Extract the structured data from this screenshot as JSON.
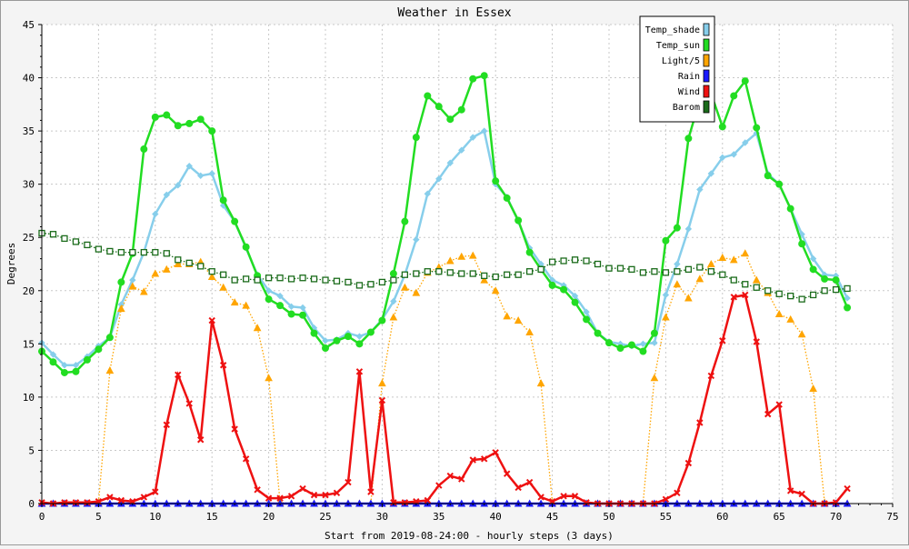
{
  "chart_data": {
    "type": "line",
    "title": "Weather in Essex",
    "xlabel": "Start from 2019-08-24:00 - hourly steps (3 days)",
    "ylabel": "Degrees",
    "xlim": [
      0,
      75
    ],
    "ylim": [
      0,
      45
    ],
    "xticks": [
      0,
      5,
      10,
      15,
      20,
      25,
      30,
      35,
      40,
      45,
      50,
      55,
      60,
      65,
      70,
      75
    ],
    "yticks": [
      0,
      5,
      10,
      15,
      20,
      25,
      30,
      35,
      40,
      45
    ],
    "grid": true,
    "legend_position": "top-right",
    "x": [
      0,
      1,
      2,
      3,
      4,
      5,
      6,
      7,
      8,
      9,
      10,
      11,
      12,
      13,
      14,
      15,
      16,
      17,
      18,
      19,
      20,
      21,
      22,
      23,
      24,
      25,
      26,
      27,
      28,
      29,
      30,
      31,
      32,
      33,
      34,
      35,
      36,
      37,
      38,
      39,
      40,
      41,
      42,
      43,
      44,
      45,
      46,
      47,
      48,
      49,
      50,
      51,
      52,
      53,
      54,
      55,
      56,
      57,
      58,
      59,
      60,
      61,
      62,
      63,
      64,
      65,
      66,
      67,
      68,
      69,
      70,
      71
    ],
    "series": [
      {
        "name": "Temp_shade",
        "color": "#87ceeb",
        "marker": "diamond",
        "style": "solid",
        "values": [
          15.1,
          14.0,
          13.0,
          13.0,
          13.8,
          14.8,
          15.6,
          18.7,
          21.0,
          23.6,
          27.2,
          29.0,
          29.9,
          31.7,
          30.8,
          31.0,
          28.0,
          26.5,
          24.0,
          21.5,
          20.0,
          19.5,
          18.5,
          18.4,
          16.5,
          15.3,
          15.4,
          16.0,
          15.7,
          16.1,
          17.3,
          19.0,
          21.5,
          24.8,
          29.1,
          30.5,
          32.0,
          33.2,
          34.4,
          35.0,
          30.0,
          28.8,
          26.5,
          24.0,
          22.5,
          21.0,
          20.5,
          19.5,
          18.0,
          16.0,
          15.2,
          15.0,
          14.8,
          15.0,
          15.1,
          19.6,
          22.5,
          25.8,
          29.5,
          31.0,
          32.5,
          32.8,
          33.9,
          34.8,
          31.0,
          30.0,
          27.7,
          25.3,
          23.0,
          21.5,
          21.4,
          19.3
        ]
      },
      {
        "name": "Temp_sun",
        "color": "#22dd22",
        "marker": "circle",
        "style": "solid",
        "values": [
          14.3,
          13.3,
          12.3,
          12.4,
          13.5,
          14.5,
          15.6,
          20.8,
          23.5,
          33.3,
          36.3,
          36.5,
          35.5,
          35.7,
          36.1,
          35.0,
          28.5,
          26.5,
          24.1,
          21.4,
          19.2,
          18.6,
          17.8,
          17.7,
          16.0,
          14.6,
          15.3,
          15.7,
          15.0,
          16.1,
          17.2,
          21.6,
          26.5,
          34.4,
          38.3,
          37.3,
          36.1,
          37.0,
          39.9,
          40.2,
          30.3,
          28.7,
          26.6,
          23.6,
          22.0,
          20.5,
          20.1,
          18.9,
          17.3,
          16.0,
          15.1,
          14.6,
          14.9,
          14.3,
          16.0,
          24.7,
          25.9,
          34.3,
          37.9,
          38.5,
          35.4,
          38.3,
          39.7,
          35.3,
          30.8,
          30.0,
          27.7,
          24.4,
          22.0,
          21.1,
          21.0,
          18.4
        ]
      },
      {
        "name": "Light/5",
        "color": "#ffa500",
        "marker": "triangle",
        "style": "dotted",
        "values": [
          0,
          0,
          0,
          0,
          0,
          0.1,
          12.5,
          18.3,
          20.4,
          19.9,
          21.6,
          22.0,
          22.5,
          22.5,
          22.7,
          21.3,
          20.3,
          18.9,
          18.6,
          16.5,
          11.8,
          0.1,
          0,
          0,
          0,
          0,
          0,
          0,
          0,
          0,
          11.3,
          17.5,
          20.3,
          19.8,
          21.7,
          22.2,
          22.8,
          23.2,
          23.3,
          21.0,
          20.0,
          17.6,
          17.2,
          16.1,
          11.3,
          0.1,
          0,
          0,
          0,
          0,
          0,
          0,
          0,
          0,
          11.8,
          17.5,
          20.6,
          19.3,
          21.1,
          22.5,
          23.1,
          22.9,
          23.5,
          21.0,
          19.8,
          17.8,
          17.3,
          15.9,
          10.8,
          0.1,
          0,
          0
        ]
      },
      {
        "name": "Rain",
        "color": "#1a1aff",
        "marker": "triangle",
        "style": "solid",
        "values": [
          0,
          0,
          0,
          0,
          0,
          0,
          0,
          0,
          0,
          0,
          0,
          0,
          0,
          0,
          0,
          0,
          0,
          0,
          0,
          0,
          0,
          0,
          0,
          0,
          0,
          0,
          0,
          0,
          0,
          0,
          0,
          0,
          0,
          0,
          0,
          0,
          0,
          0,
          0,
          0,
          0,
          0,
          0,
          0,
          0,
          0,
          0,
          0,
          0,
          0,
          0,
          0,
          0,
          0,
          0,
          0,
          0,
          0,
          0,
          0,
          0,
          0,
          0,
          0,
          0,
          0,
          0,
          0,
          0,
          0,
          0,
          0
        ]
      },
      {
        "name": "Wind",
        "color": "#ee1111",
        "marker": "x",
        "style": "solid",
        "values": [
          0.1,
          0,
          0.1,
          0.1,
          0.1,
          0.2,
          0.6,
          0.3,
          0.2,
          0.6,
          1.1,
          7.4,
          12.1,
          9.4,
          6.0,
          17.2,
          13.0,
          7.0,
          4.2,
          1.3,
          0.5,
          0.5,
          0.7,
          1.4,
          0.8,
          0.8,
          1.0,
          2.0,
          12.4,
          1.1,
          9.7,
          0.1,
          0.1,
          0.2,
          0.3,
          1.7,
          2.6,
          2.3,
          4.1,
          4.2,
          4.8,
          2.8,
          1.5,
          2.0,
          0.6,
          0.2,
          0.7,
          0.7,
          0.1,
          0,
          0,
          0,
          0,
          0,
          0,
          0.4,
          1.0,
          3.8,
          7.6,
          12.0,
          15.3,
          19.4,
          19.6,
          15.2,
          8.4,
          9.3,
          1.2,
          0.9,
          0,
          0,
          0.1,
          1.4
        ]
      },
      {
        "name": "Barom",
        "color": "#1a6b1a",
        "marker": "square",
        "style": "dotted",
        "values": [
          25.4,
          25.3,
          24.9,
          24.6,
          24.3,
          23.9,
          23.7,
          23.6,
          23.6,
          23.6,
          23.6,
          23.5,
          22.9,
          22.6,
          22.3,
          21.8,
          21.5,
          21.0,
          21.1,
          21.0,
          21.2,
          21.2,
          21.1,
          21.2,
          21.1,
          21.0,
          20.9,
          20.8,
          20.5,
          20.6,
          20.8,
          21.0,
          21.5,
          21.6,
          21.8,
          21.8,
          21.7,
          21.6,
          21.6,
          21.4,
          21.3,
          21.5,
          21.5,
          21.8,
          22.0,
          22.7,
          22.8,
          22.9,
          22.8,
          22.5,
          22.1,
          22.1,
          22.0,
          21.7,
          21.8,
          21.7,
          21.8,
          22.0,
          22.2,
          21.8,
          21.5,
          21.0,
          20.6,
          20.3,
          20.0,
          19.7,
          19.5,
          19.2,
          19.6,
          20.0,
          20.1,
          20.2
        ]
      }
    ]
  }
}
